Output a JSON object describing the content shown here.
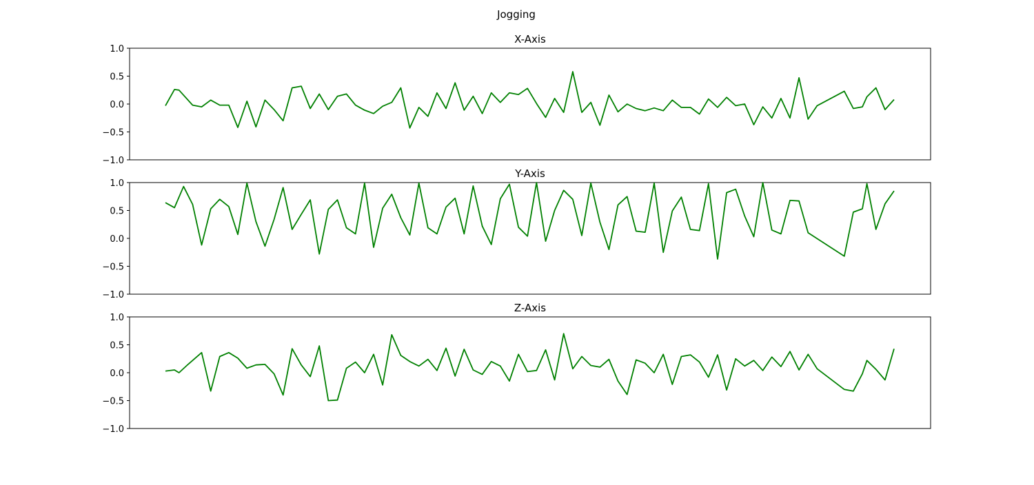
{
  "figure": {
    "suptitle": "Jogging",
    "line_color": "#008000"
  },
  "chart_data": [
    {
      "type": "line",
      "title": "X-Axis",
      "xlabel": "",
      "ylabel": "",
      "ylim": [
        -1.0,
        1.0
      ],
      "yticks": [
        1.0,
        0.5,
        0.0,
        -0.5,
        -1.0
      ],
      "ytick_labels": [
        "1.0",
        "0.5",
        "0.0",
        "−0.5",
        "−1.0"
      ],
      "xticks_visible": false,
      "grid": false,
      "series": [
        {
          "values": [
            -0.03,
            0.26,
            0.25,
            -0.02,
            -0.05,
            0.07,
            -0.02,
            -0.02,
            -0.42,
            0.05,
            -0.41,
            0.07,
            -0.1,
            -0.3,
            0.29,
            0.32,
            -0.08,
            0.18,
            -0.1,
            0.14,
            0.18,
            -0.02,
            -0.11,
            -0.17,
            -0.04,
            0.03,
            0.29,
            -0.43,
            -0.06,
            -0.22,
            0.2,
            -0.08,
            0.38,
            -0.11,
            0.14,
            -0.17,
            0.2,
            0.03,
            0.2,
            0.17,
            0.28,
            0.01,
            -0.24,
            0.1,
            -0.15,
            0.58,
            -0.15,
            0.03,
            -0.38,
            0.16,
            -0.14,
            0.0,
            -0.08,
            -0.12,
            -0.07,
            -0.12,
            0.07,
            -0.06,
            -0.06,
            -0.18,
            0.09,
            -0.06,
            0.12,
            -0.03,
            0.0,
            -0.37,
            -0.05,
            -0.25,
            0.1,
            -0.25,
            0.47,
            -0.27,
            -0.03,
            0.23,
            -0.08,
            -0.05,
            0.13,
            0.29,
            -0.1,
            0.08
          ],
          "x": [
            1,
            2,
            2.5,
            4,
            5,
            6,
            7,
            8,
            9,
            10,
            11,
            12,
            13,
            14,
            15,
            16,
            17,
            18,
            19,
            20,
            21,
            22,
            23,
            24,
            25,
            26,
            27,
            28,
            29,
            30,
            31,
            32,
            33,
            34,
            35,
            36,
            37,
            38,
            39,
            40,
            41,
            42,
            43,
            44,
            45,
            46,
            47,
            48,
            49,
            50,
            51,
            52,
            53,
            54,
            55,
            56,
            57,
            58,
            59,
            60,
            61,
            62,
            63,
            64,
            65,
            66,
            67,
            68,
            69,
            70,
            71,
            72,
            73,
            76,
            77,
            78,
            78.5,
            79.5,
            80.5,
            81.5
          ]
        }
      ]
    },
    {
      "type": "line",
      "title": "Y-Axis",
      "xlabel": "",
      "ylabel": "",
      "ylim": [
        -1.0,
        1.0
      ],
      "yticks": [
        1.0,
        0.5,
        0.0,
        -0.5,
        -1.0
      ],
      "ytick_labels": [
        "1.0",
        "0.5",
        "0.0",
        "−0.5",
        "−1.0"
      ],
      "xticks_visible": false,
      "grid": false,
      "series": [
        {
          "values": [
            0.64,
            0.55,
            0.93,
            0.61,
            -0.12,
            0.53,
            0.7,
            0.57,
            0.07,
            0.99,
            0.3,
            -0.14,
            0.34,
            0.91,
            0.16,
            0.43,
            0.69,
            -0.28,
            0.52,
            0.69,
            0.19,
            0.08,
            0.99,
            -0.16,
            0.54,
            0.79,
            0.37,
            0.06,
            0.99,
            0.19,
            0.08,
            0.56,
            0.72,
            0.08,
            0.94,
            0.22,
            -0.11,
            0.71,
            0.97,
            0.2,
            0.04,
            1.0,
            -0.05,
            0.5,
            0.86,
            0.7,
            0.05,
            0.99,
            0.29,
            -0.2,
            0.6,
            0.75,
            0.13,
            0.11,
            0.99,
            -0.25,
            0.49,
            0.74,
            0.16,
            0.14,
            0.98,
            -0.37,
            0.82,
            0.88,
            0.4,
            0.03,
            1.0,
            0.15,
            0.08,
            0.68,
            0.67,
            0.1,
            -0.32,
            0.47,
            0.53,
            0.98,
            0.16,
            0.62,
            0.85
          ],
          "x": [
            1,
            2,
            3,
            4,
            5,
            6,
            7,
            8,
            9,
            10,
            11,
            12,
            13,
            14,
            15,
            16,
            17,
            18,
            19,
            20,
            21,
            22,
            23,
            24,
            25,
            26,
            27,
            28,
            29,
            30,
            31,
            32,
            33,
            34,
            35,
            36,
            37,
            38,
            39,
            40,
            41,
            42,
            43,
            44,
            45,
            46,
            47,
            48,
            49,
            50,
            51,
            52,
            53,
            54,
            55,
            56,
            57,
            58,
            59,
            60,
            61,
            62,
            63,
            64,
            65,
            66,
            67,
            68,
            69,
            70,
            71,
            72,
            76,
            77,
            78,
            78.5,
            79.5,
            80.5,
            81.5
          ]
        }
      ]
    },
    {
      "type": "line",
      "title": "Z-Axis",
      "xlabel": "",
      "ylabel": "",
      "ylim": [
        -1.0,
        1.0
      ],
      "yticks": [
        1.0,
        0.5,
        0.0,
        -0.5,
        -1.0
      ],
      "ytick_labels": [
        "1.0",
        "0.5",
        "0.0",
        "−0.5",
        "−1.0"
      ],
      "xticks_visible": false,
      "grid": false,
      "series": [
        {
          "values": [
            0.03,
            0.05,
            0.0,
            0.15,
            0.36,
            -0.33,
            0.29,
            0.36,
            0.26,
            0.08,
            0.14,
            0.15,
            -0.02,
            -0.4,
            0.43,
            0.14,
            -0.07,
            0.48,
            -0.5,
            -0.49,
            0.08,
            0.19,
            0.0,
            0.33,
            -0.22,
            0.68,
            0.31,
            0.2,
            0.12,
            0.24,
            0.04,
            0.44,
            -0.06,
            0.42,
            0.05,
            -0.03,
            0.2,
            0.12,
            -0.15,
            0.33,
            0.02,
            0.04,
            0.41,
            -0.13,
            0.7,
            0.07,
            0.29,
            0.13,
            0.1,
            0.24,
            -0.15,
            -0.39,
            0.23,
            0.17,
            0.0,
            0.33,
            -0.21,
            0.29,
            0.32,
            0.19,
            -0.08,
            0.32,
            -0.31,
            0.25,
            0.12,
            0.22,
            0.04,
            0.28,
            0.11,
            0.38,
            0.05,
            0.33,
            0.07,
            -0.3,
            -0.33,
            -0.02,
            0.22,
            0.06,
            -0.13,
            0.43
          ],
          "x": [
            1,
            2,
            2.5,
            3.5,
            5,
            6,
            7,
            8,
            9,
            10,
            11,
            12,
            13,
            14,
            15,
            16,
            17,
            18,
            19,
            20,
            21,
            22,
            23,
            24,
            25,
            26,
            27,
            28,
            29,
            30,
            31,
            32,
            33,
            34,
            35,
            36,
            37,
            38,
            39,
            40,
            41,
            42,
            43,
            44,
            45,
            46,
            47,
            48,
            49,
            50,
            51,
            52,
            53,
            54,
            55,
            56,
            57,
            58,
            59,
            60,
            61,
            62,
            63,
            64,
            65,
            66,
            67,
            68,
            69,
            70,
            71,
            72,
            73,
            76,
            77,
            78,
            78.5,
            79.5,
            80.5,
            81.5
          ]
        }
      ]
    }
  ]
}
